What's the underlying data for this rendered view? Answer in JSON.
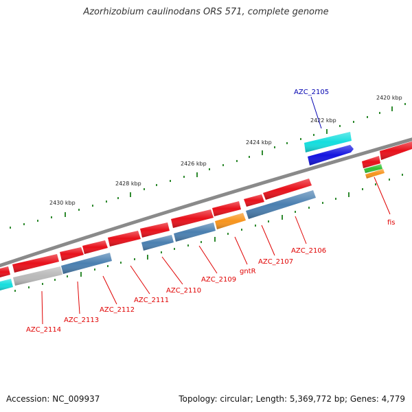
{
  "title": "Azorhizobium caulinodans ORS 571, complete genome",
  "footer": {
    "accession": "Accession: NC_009937",
    "stats": "Topology: circular; Length: 5,369,772 bp; Genes: 4,779"
  },
  "colors": {
    "backbone": "#8a8a8a",
    "ticks": "#2f8a2f",
    "gene_red": "#e8101a",
    "gene_steelblue": "#4a7fb0",
    "gene_orange": "#f7941d",
    "gene_cyan": "#14dede",
    "gene_blue": "#1414e0",
    "gene_green": "#34c234",
    "gene_grey": "#b9b9b9",
    "label_red": "#e00000",
    "label_blue": "#0000b0"
  },
  "scale_labels": [
    "2420 kbp",
    "2422 kbp",
    "2424 kbp",
    "2426 kbp",
    "2428 kbp",
    "2430 kbp"
  ],
  "gene_labels": [
    {
      "text": "AZC_2105",
      "color": "blue"
    },
    {
      "text": "fis",
      "color": "red"
    },
    {
      "text": "AZC_2106",
      "color": "red"
    },
    {
      "text": "AZC_2107",
      "color": "red"
    },
    {
      "text": "gntR",
      "color": "red"
    },
    {
      "text": "AZC_2109",
      "color": "red"
    },
    {
      "text": "AZC_2110",
      "color": "red"
    },
    {
      "text": "AZC_2111",
      "color": "red"
    },
    {
      "text": "AZC_2112",
      "color": "red"
    },
    {
      "text": "AZC_2113",
      "color": "red"
    },
    {
      "text": "AZC_2114",
      "color": "red"
    }
  ]
}
